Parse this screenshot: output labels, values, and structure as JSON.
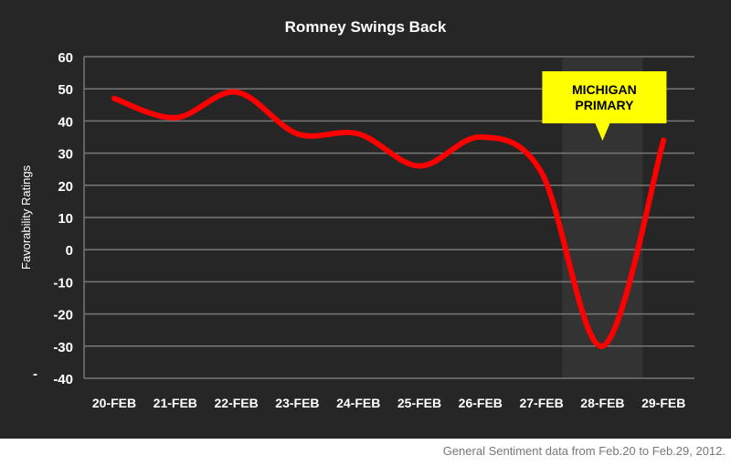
{
  "chart_data": {
    "type": "line",
    "title": "Romney Swings Back",
    "xlabel": "",
    "ylabel": "Favorability Ratings",
    "categories": [
      "20-FEB",
      "21-FEB",
      "22-FEB",
      "23-FEB",
      "24-FEB",
      "25-FEB",
      "26-FEB",
      "27-FEB",
      "28-FEB",
      "29-FEB"
    ],
    "series": [
      {
        "name": "Romney",
        "values": [
          47,
          41,
          49,
          36,
          36,
          26,
          35,
          24,
          -30,
          34
        ]
      }
    ],
    "ylim": [
      -40,
      60
    ],
    "yticks": [
      "60",
      "50",
      "40",
      "30",
      "20",
      "10",
      "0",
      "-10",
      "-20",
      "-30",
      "-40"
    ],
    "grid": true,
    "highlight": {
      "category": "28-FEB",
      "label_line1": "MICHIGAN",
      "label_line2": "PRIMARY"
    },
    "colors": {
      "line": "#ff0000",
      "background": "#262626",
      "callout": "#ffff00",
      "band": "#333333",
      "grid": "#777777"
    }
  },
  "footer": "General Sentiment data from Feb.20 to Feb.29, 2012."
}
